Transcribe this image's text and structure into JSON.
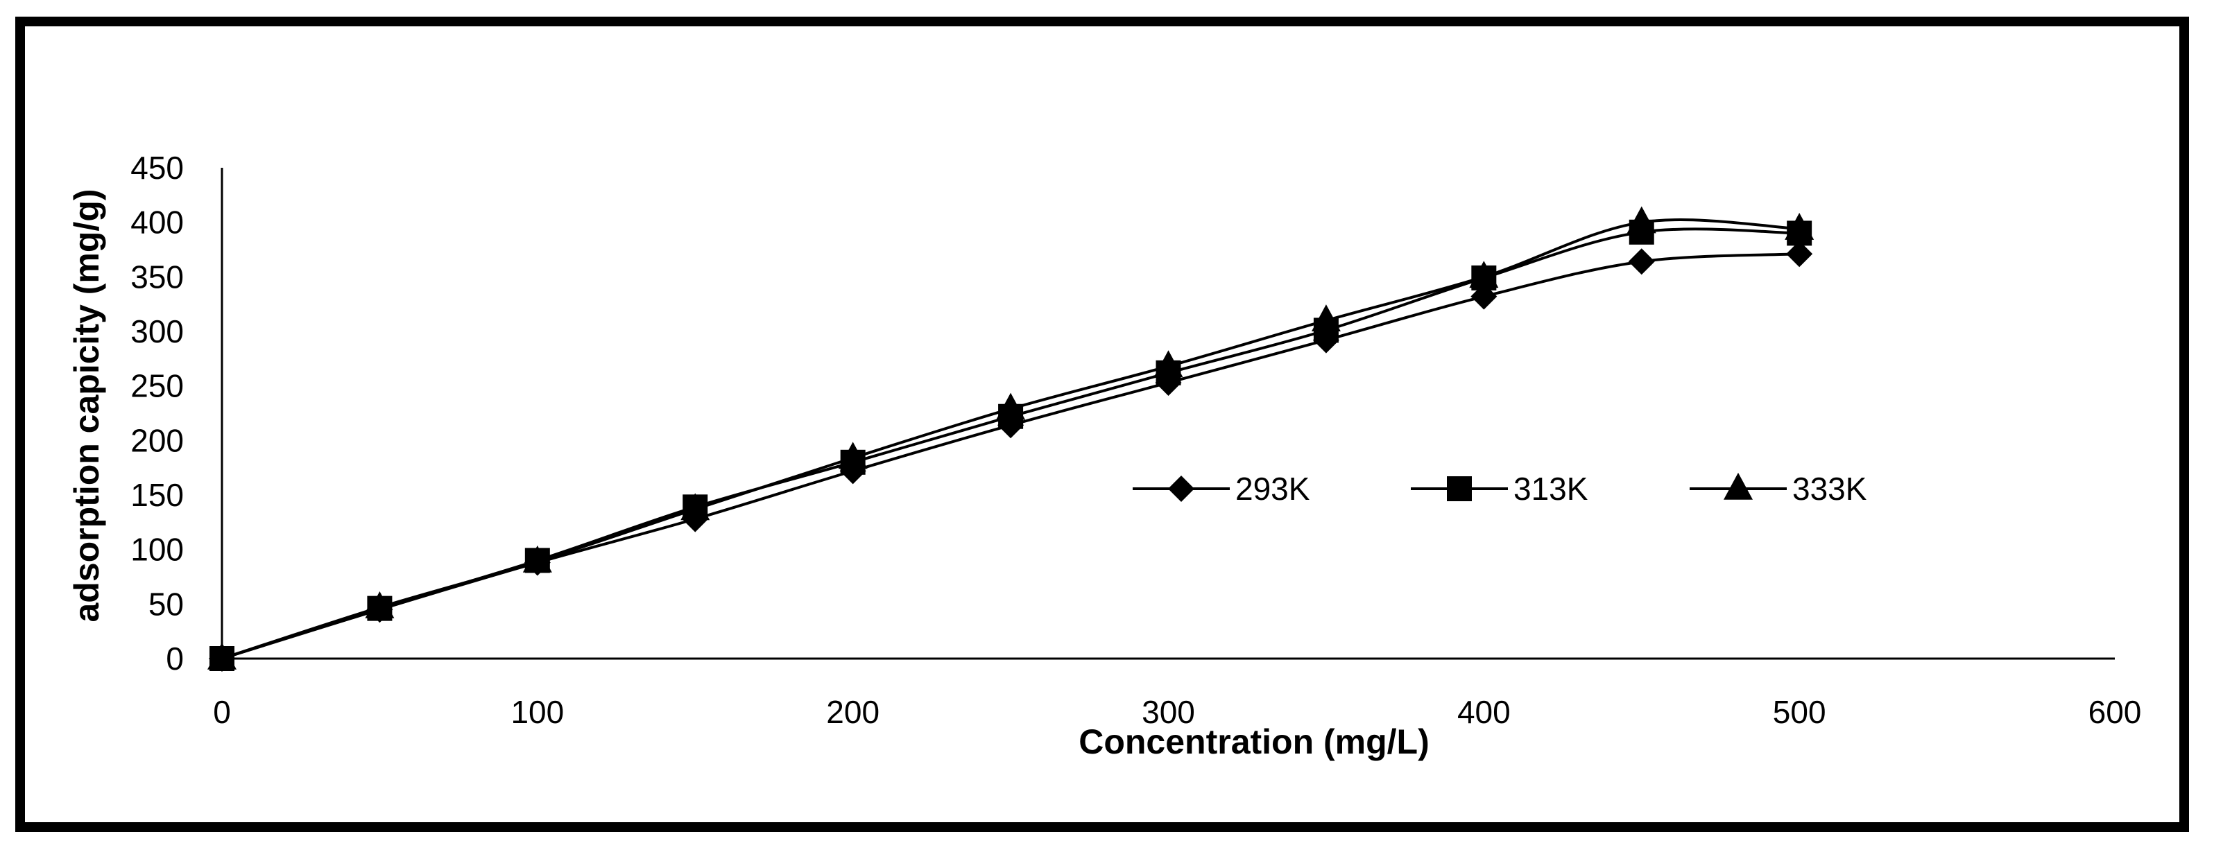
{
  "chart_data": {
    "type": "line",
    "title": "",
    "xlabel": "Concentration (mg/L)",
    "ylabel": "adsorption capicity (mg/g)",
    "xlim": [
      0,
      600
    ],
    "ylim": [
      0,
      450
    ],
    "xticks": [
      0,
      100,
      200,
      300,
      400,
      500,
      600
    ],
    "yticks": [
      0,
      50,
      100,
      150,
      200,
      250,
      300,
      350,
      400,
      450
    ],
    "grid": false,
    "legend_position": "center-right",
    "series": [
      {
        "name": "293K",
        "marker": "diamond",
        "color": "#000000",
        "x": [
          0,
          50,
          100,
          150,
          200,
          250,
          300,
          350,
          400,
          450,
          500
        ],
        "y": [
          0,
          45,
          88,
          128,
          172,
          214,
          253,
          292,
          332,
          364,
          371
        ]
      },
      {
        "name": "313K",
        "marker": "square",
        "color": "#000000",
        "x": [
          0,
          50,
          100,
          150,
          200,
          250,
          300,
          350,
          400,
          450,
          500
        ],
        "y": [
          0,
          46,
          90,
          139,
          180,
          222,
          262,
          301,
          349,
          391,
          390
        ]
      },
      {
        "name": "333K",
        "marker": "triangle",
        "color": "#000000",
        "x": [
          0,
          50,
          100,
          150,
          200,
          250,
          300,
          350,
          400,
          450,
          500
        ],
        "y": [
          0,
          47,
          89,
          137,
          184,
          229,
          268,
          310,
          350,
          400,
          394
        ]
      }
    ]
  }
}
